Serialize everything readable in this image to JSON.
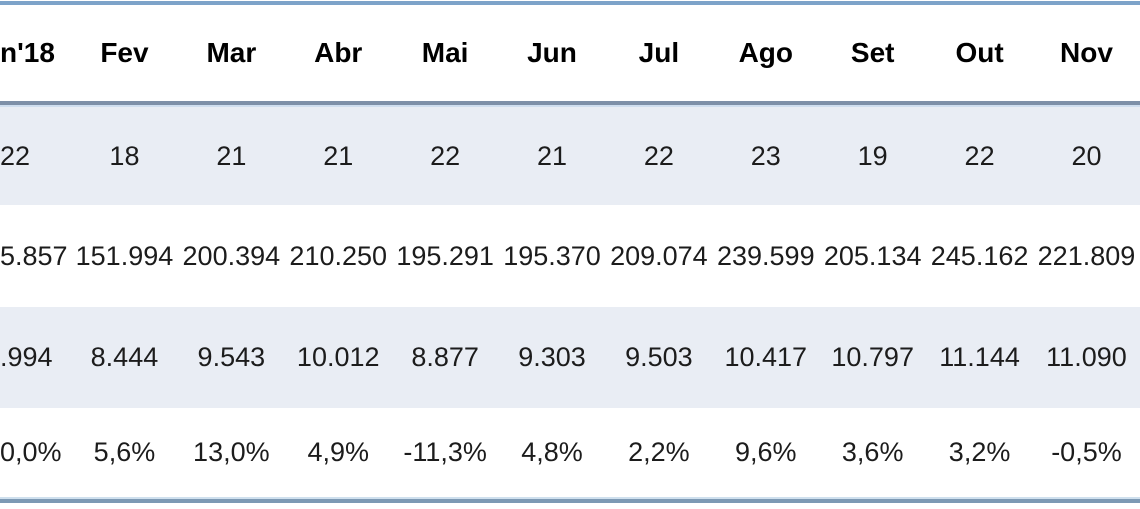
{
  "chart_data": {
    "type": "table",
    "title": "",
    "note": "monthly data table, first column clipped at left edge of screenshot; Portuguese month headers; European number formatting",
    "categories": [
      "n'18",
      "Fev",
      "Mar",
      "Abr",
      "Mai",
      "Jun",
      "Jul",
      "Ago",
      "Set",
      "Out",
      "Nov"
    ],
    "series": [
      {
        "name": "row_1",
        "striped": true,
        "values": [
          "22",
          "18",
          "21",
          "21",
          "22",
          "21",
          "22",
          "23",
          "19",
          "22",
          "20"
        ]
      },
      {
        "name": "row_2",
        "striped": false,
        "values": [
          "5.857",
          "151.994",
          "200.394",
          "210.250",
          "195.291",
          "195.370",
          "209.074",
          "239.599",
          "205.134",
          "245.162",
          "221.809"
        ]
      },
      {
        "name": "row_3",
        "striped": true,
        "values": [
          ".994",
          "8.444",
          "9.543",
          "10.012",
          "8.877",
          "9.303",
          "9.503",
          "10.417",
          "10.797",
          "11.144",
          "11.090"
        ]
      },
      {
        "name": "row_4",
        "striped": false,
        "values": [
          "0,0%",
          "5,6%",
          "13,0%",
          "4,9%",
          "-11,3%",
          "4,8%",
          "2,2%",
          "9,6%",
          "3,6%",
          "3,2%",
          "-0,5%"
        ]
      }
    ]
  },
  "colors": {
    "stripe_bg": "#E9EDF4",
    "top_border": "#7DA3C9",
    "divider_dark": "#7E90A8",
    "divider_light": "#CFDEEF",
    "bottom_light": "#CFE0EE",
    "bottom_dark": "#7D99B4",
    "text": "#1C1C1C"
  }
}
